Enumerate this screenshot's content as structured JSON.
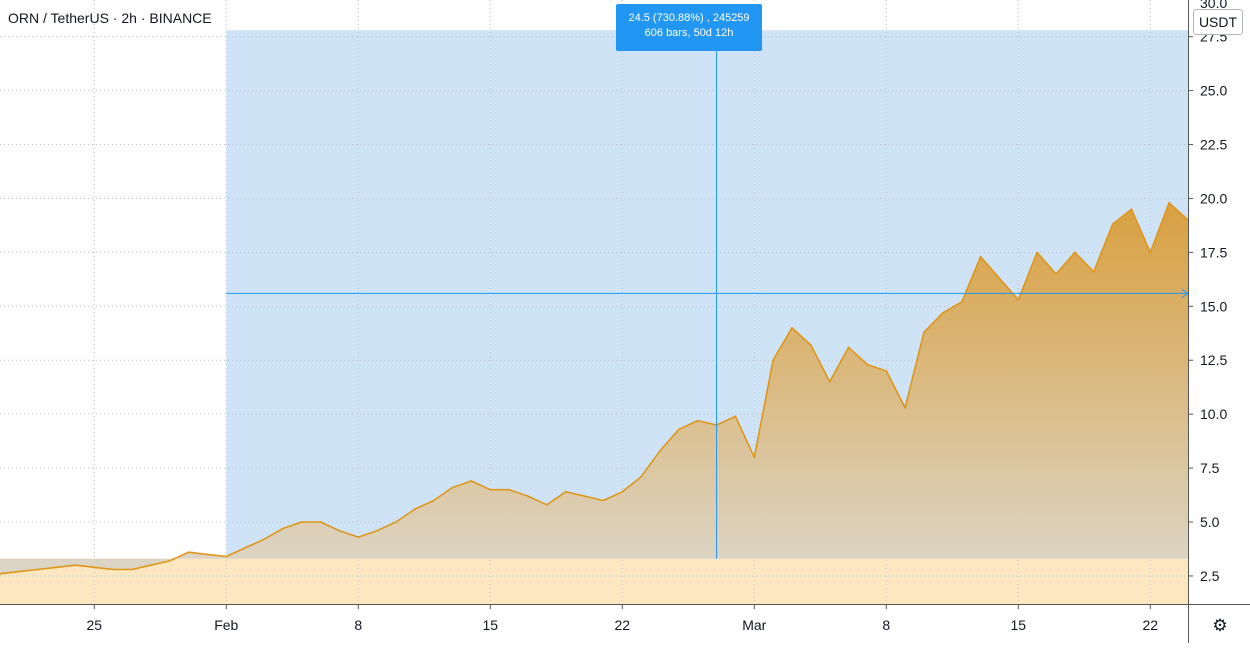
{
  "header": {
    "symbol": "ORN",
    "quote": "TetherUS",
    "interval": "2h",
    "exchange": "BINANCE",
    "separator": "·"
  },
  "axis": {
    "currency": "USDT",
    "top_cut_label": "30.0"
  },
  "tooltip": {
    "line1": "24.5 (730.88%) , 245259",
    "line2": "606 bars, 50d 12h"
  },
  "settings": {
    "icon": "gear-icon"
  },
  "colors": {
    "line": "#e0961a",
    "fill_top": "#d9a040",
    "fill_bottom": "#dcd6c8",
    "range_box": "#cfe3f6",
    "range_line": "#2196f3",
    "below_range": "#fde7c0",
    "grid": "#b9bfc9",
    "tooltip_bg": "#2196f3"
  },
  "chart_data": {
    "type": "area",
    "title": "",
    "xlabel": "",
    "ylabel": "USDT",
    "ylim": [
      1.2,
      29.2
    ],
    "xlim": [
      "2021-01-20",
      "2021-03-24"
    ],
    "grid": true,
    "y_ticks": [
      2.5,
      5.0,
      7.5,
      10.0,
      12.5,
      15.0,
      17.5,
      20.0,
      22.5,
      25.0,
      27.5
    ],
    "y_tick_labels": [
      "2.5",
      "5.0",
      "7.5",
      "10.0",
      "12.5",
      "15.0",
      "17.5",
      "20.0",
      "22.5",
      "25.0",
      "27.5"
    ],
    "x_ticks": [
      {
        "date": "2021-01-25",
        "label": "25"
      },
      {
        "date": "2021-02-01",
        "label": "Feb"
      },
      {
        "date": "2021-02-08",
        "label": "8"
      },
      {
        "date": "2021-02-15",
        "label": "15"
      },
      {
        "date": "2021-02-22",
        "label": "22"
      },
      {
        "date": "2021-03-01",
        "label": "Mar"
      },
      {
        "date": "2021-03-08",
        "label": "8"
      },
      {
        "date": "2021-03-15",
        "label": "15"
      },
      {
        "date": "2021-03-22",
        "label": "22"
      }
    ],
    "series": [
      {
        "points": [
          [
            "2021-01-20",
            2.6
          ],
          [
            "2021-01-21",
            2.7
          ],
          [
            "2021-01-22",
            2.8
          ],
          [
            "2021-01-23",
            2.9
          ],
          [
            "2021-01-24",
            3.0
          ],
          [
            "2021-01-25",
            2.9
          ],
          [
            "2021-01-26",
            2.8
          ],
          [
            "2021-01-27",
            2.8
          ],
          [
            "2021-01-28",
            3.0
          ],
          [
            "2021-01-29",
            3.2
          ],
          [
            "2021-01-30",
            3.6
          ],
          [
            "2021-01-31",
            3.5
          ],
          [
            "2021-02-01",
            3.4
          ],
          [
            "2021-02-02",
            3.8
          ],
          [
            "2021-02-03",
            4.2
          ],
          [
            "2021-02-04",
            4.7
          ],
          [
            "2021-02-05",
            5.0
          ],
          [
            "2021-02-06",
            5.0
          ],
          [
            "2021-02-07",
            4.6
          ],
          [
            "2021-02-08",
            4.3
          ],
          [
            "2021-02-09",
            4.6
          ],
          [
            "2021-02-10",
            5.0
          ],
          [
            "2021-02-11",
            5.6
          ],
          [
            "2021-02-12",
            6.0
          ],
          [
            "2021-02-13",
            6.6
          ],
          [
            "2021-02-14",
            6.9
          ],
          [
            "2021-02-15",
            6.5
          ],
          [
            "2021-02-16",
            6.5
          ],
          [
            "2021-02-17",
            6.2
          ],
          [
            "2021-02-18",
            5.8
          ],
          [
            "2021-02-19",
            6.4
          ],
          [
            "2021-02-20",
            6.2
          ],
          [
            "2021-02-21",
            6.0
          ],
          [
            "2021-02-22",
            6.4
          ],
          [
            "2021-02-23",
            7.1
          ],
          [
            "2021-02-24",
            8.3
          ],
          [
            "2021-02-25",
            9.3
          ],
          [
            "2021-02-26",
            9.7
          ],
          [
            "2021-02-27",
            9.5
          ],
          [
            "2021-02-28",
            9.9
          ],
          [
            "2021-03-01",
            8.0
          ],
          [
            "2021-03-02",
            12.5
          ],
          [
            "2021-03-03",
            14.0
          ],
          [
            "2021-03-04",
            13.2
          ],
          [
            "2021-03-05",
            11.5
          ],
          [
            "2021-03-06",
            13.1
          ],
          [
            "2021-03-07",
            12.3
          ],
          [
            "2021-03-08",
            12.0
          ],
          [
            "2021-03-09",
            10.3
          ],
          [
            "2021-03-10",
            13.8
          ],
          [
            "2021-03-11",
            14.7
          ],
          [
            "2021-03-12",
            15.2
          ],
          [
            "2021-03-13",
            17.3
          ],
          [
            "2021-03-14",
            16.3
          ],
          [
            "2021-03-15",
            15.3
          ],
          [
            "2021-03-16",
            17.5
          ],
          [
            "2021-03-17",
            16.5
          ],
          [
            "2021-03-18",
            17.5
          ],
          [
            "2021-03-19",
            16.6
          ],
          [
            "2021-03-20",
            18.8
          ],
          [
            "2021-03-21",
            19.5
          ],
          [
            "2021-03-22",
            17.5
          ],
          [
            "2021-03-23",
            19.8
          ],
          [
            "2021-03-24",
            19.0
          ]
        ]
      }
    ],
    "range_selection": {
      "start": "2021-02-01",
      "end": "2021-03-24",
      "low": 3.3,
      "high": 27.8
    },
    "crosshair": {
      "x": "2021-02-27",
      "y": 15.6
    }
  }
}
